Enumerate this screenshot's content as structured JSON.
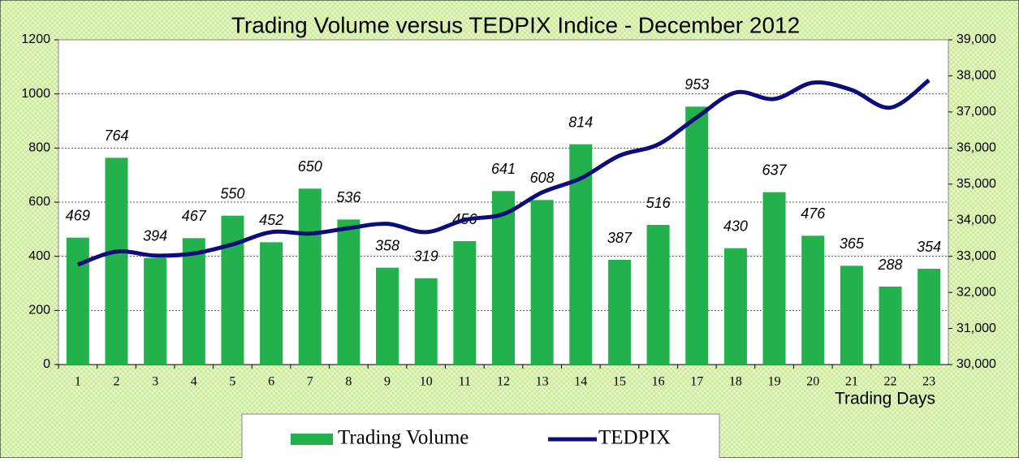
{
  "chart_data": {
    "type": "bar",
    "title": "Trading Volume versus TEDPIX Indice - December 2012",
    "x_label": "Trading Days",
    "categories": [
      "1",
      "2",
      "3",
      "4",
      "5",
      "6",
      "7",
      "8",
      "9",
      "10",
      "11",
      "12",
      "13",
      "14",
      "15",
      "16",
      "17",
      "18",
      "19",
      "20",
      "21",
      "22",
      "23"
    ],
    "series": [
      {
        "name": "Trading Volume",
        "type": "bar",
        "color": "#22b14c",
        "values": [
          469,
          764,
          394,
          467,
          550,
          452,
          650,
          536,
          358,
          319,
          456,
          641,
          608,
          814,
          387,
          516,
          953,
          430,
          637,
          476,
          365,
          288,
          354
        ]
      },
      {
        "name": "TEDPIX",
        "type": "line",
        "axis": "y2",
        "color": "#0c0c7a",
        "values": [
          32770,
          33130,
          33020,
          33080,
          33330,
          33670,
          33630,
          33780,
          33900,
          33670,
          34010,
          34170,
          34770,
          35160,
          35790,
          36100,
          36850,
          37540,
          37360,
          37810,
          37610,
          37120,
          37880
        ]
      }
    ],
    "ylim": [
      0,
      1200
    ],
    "yticks": [
      0,
      200,
      400,
      600,
      800,
      1000,
      1200
    ],
    "y2lim": [
      30000,
      39000
    ],
    "y2ticks": [
      {
        "value": 30000,
        "label": "30,000"
      },
      {
        "value": 31000,
        "label": "31,000"
      },
      {
        "value": 32000,
        "label": "32,000"
      },
      {
        "value": 33000,
        "label": "33,000"
      },
      {
        "value": 34000,
        "label": "34,000"
      },
      {
        "value": 35000,
        "label": "35,000"
      },
      {
        "value": 36000,
        "label": "36,000"
      },
      {
        "value": 37000,
        "label": "37,000"
      },
      {
        "value": 38000,
        "label": "38,000"
      },
      {
        "value": 39000,
        "label": "39,000"
      }
    ],
    "grid": true,
    "legend": "bottom"
  }
}
